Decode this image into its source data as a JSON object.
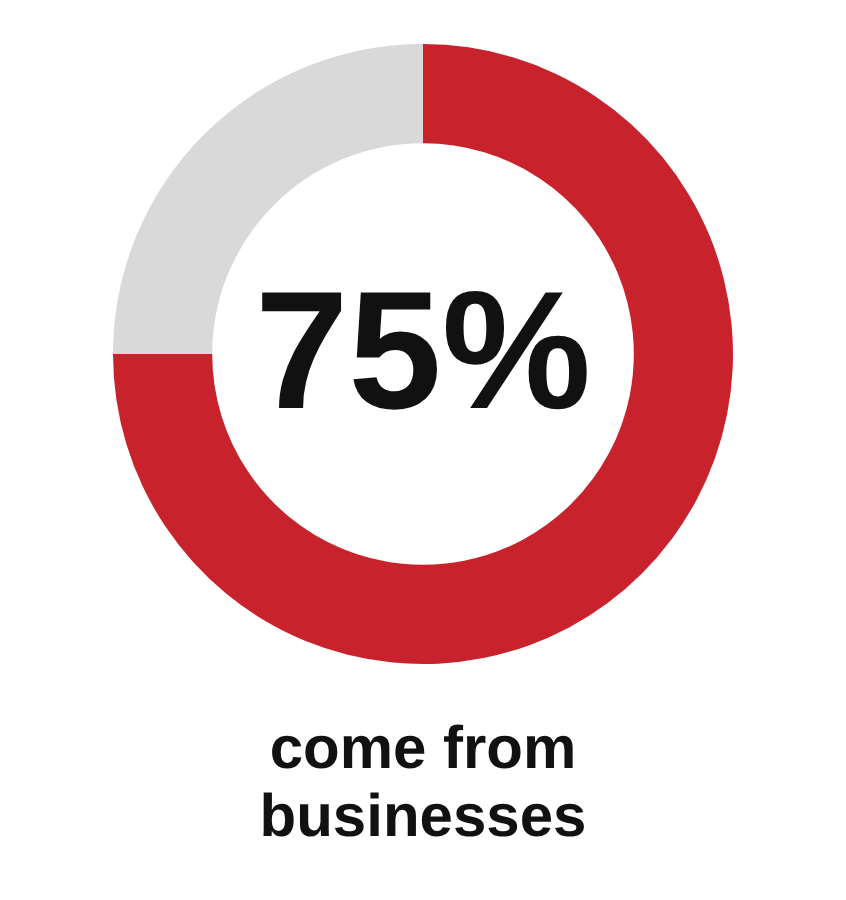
{
  "chart_data": {
    "type": "donut",
    "title": "come from businesses",
    "categories": [
      null,
      null
    ],
    "values": [
      75,
      25
    ],
    "colors": [
      "#c8232c",
      "#d9d9d9"
    ],
    "value_labels": [
      "75%",
      null
    ]
  }
}
